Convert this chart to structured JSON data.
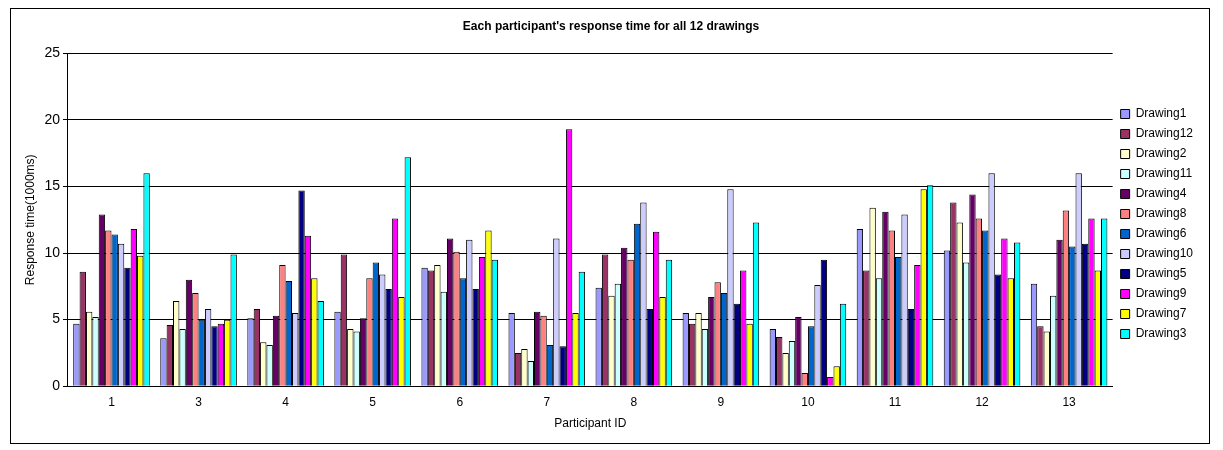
{
  "chart_data": {
    "type": "bar",
    "title": "Each participant's response time for all 12 drawings",
    "xlabel": "Participant ID",
    "ylabel": "Response time(1000ms)",
    "categories": [
      "1",
      "3",
      "4",
      "5",
      "6",
      "7",
      "8",
      "9",
      "10",
      "11",
      "12",
      "13"
    ],
    "series": [
      {
        "name": "Drawing1",
        "color": "#9999ff",
        "values": [
          4.7,
          3.6,
          5.1,
          5.6,
          8.9,
          5.5,
          7.4,
          5.5,
          4.3,
          11.8,
          10.2,
          7.7
        ]
      },
      {
        "name": "Drawing12",
        "color": "#993366",
        "values": [
          8.6,
          4.6,
          5.8,
          9.9,
          8.7,
          2.5,
          9.9,
          4.7,
          3.7,
          8.7,
          13.8,
          4.5
        ]
      },
      {
        "name": "Drawing2",
        "color": "#ffffcc",
        "values": [
          5.6,
          6.4,
          3.3,
          4.3,
          9.1,
          2.8,
          6.8,
          5.5,
          2.5,
          13.4,
          12.3,
          4.1
        ]
      },
      {
        "name": "Drawing11",
        "color": "#ccffff",
        "values": [
          5.2,
          4.3,
          3.1,
          4.1,
          7.1,
          1.9,
          7.7,
          4.3,
          3.4,
          8.1,
          9.3,
          6.8
        ]
      },
      {
        "name": "Drawing4",
        "color": "#660066",
        "values": [
          12.9,
          8.0,
          5.3,
          5.1,
          11.1,
          5.6,
          10.4,
          6.7,
          5.2,
          13.1,
          14.4,
          11.0
        ]
      },
      {
        "name": "Drawing8",
        "color": "#ff8080",
        "values": [
          11.7,
          7.0,
          9.1,
          8.1,
          10.1,
          5.3,
          9.5,
          7.8,
          1.0,
          11.7,
          12.6,
          13.2
        ]
      },
      {
        "name": "Drawing6",
        "color": "#0066cc",
        "values": [
          11.4,
          5.0,
          7.9,
          9.3,
          8.1,
          3.1,
          12.2,
          7.0,
          4.5,
          9.7,
          11.7,
          10.5
        ]
      },
      {
        "name": "Drawing10",
        "color": "#ccccff",
        "values": [
          10.7,
          5.8,
          5.5,
          8.4,
          11.0,
          11.1,
          13.8,
          14.8,
          7.6,
          12.9,
          16.0,
          16.0
        ]
      },
      {
        "name": "Drawing5",
        "color": "#000080",
        "values": [
          8.9,
          4.5,
          14.7,
          7.3,
          7.3,
          3.0,
          5.8,
          6.2,
          9.5,
          5.8,
          8.4,
          10.7
        ]
      },
      {
        "name": "Drawing9",
        "color": "#ff00ff",
        "values": [
          11.8,
          4.7,
          11.3,
          12.6,
          9.7,
          19.3,
          11.6,
          8.7,
          0.7,
          9.1,
          11.1,
          12.6
        ]
      },
      {
        "name": "Drawing7",
        "color": "#ffff00",
        "values": [
          9.8,
          5.0,
          8.1,
          6.7,
          11.7,
          5.5,
          6.7,
          4.7,
          1.5,
          14.8,
          8.1,
          8.7
        ]
      },
      {
        "name": "Drawing3",
        "color": "#00ffff",
        "values": [
          16.0,
          9.9,
          6.4,
          17.2,
          9.5,
          8.6,
          9.5,
          12.3,
          6.2,
          15.1,
          10.8,
          12.6
        ]
      }
    ],
    "ylim": [
      0,
      25
    ],
    "yticks": [
      0,
      5,
      10,
      15,
      20,
      25
    ],
    "grid": "y",
    "legend": "right"
  }
}
